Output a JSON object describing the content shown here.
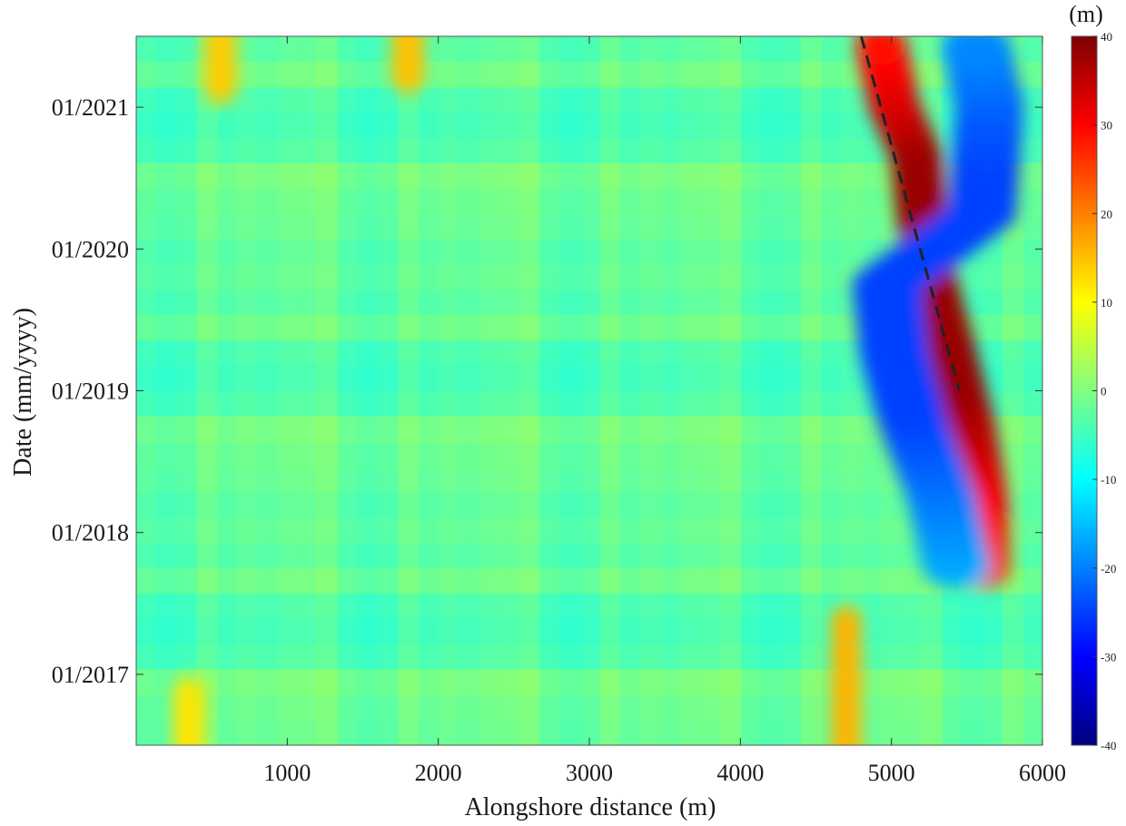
{
  "chart_data": {
    "type": "heatmap",
    "title": "",
    "xlabel": "Alongshore distance (m)",
    "ylabel": "Date (mm/yyyy)",
    "xlim": [
      0,
      6000
    ],
    "x_ticks": [
      1000,
      2000,
      3000,
      4000,
      5000,
      6000
    ],
    "x_tick_labels": [
      "1000",
      "2000",
      "3000",
      "4000",
      "5000",
      "6000"
    ],
    "ylim": [
      "2016-07",
      "2021-07"
    ],
    "y_ticks": [
      "2017-01",
      "2018-01",
      "2019-01",
      "2020-01",
      "2021-01"
    ],
    "y_tick_labels": [
      "01/2017",
      "01/2018",
      "01/2019",
      "01/2020",
      "01/2021"
    ],
    "grid": false,
    "colorbar": {
      "label": "(m)",
      "range": [
        -40,
        40
      ],
      "ticks": [
        40,
        30,
        20,
        10,
        0,
        -10,
        -20,
        -30,
        -40
      ],
      "tick_labels": [
        "40",
        "30",
        "20",
        "10",
        "0",
        "-10",
        "-20",
        "-30",
        "-40"
      ],
      "colormap": "jet"
    },
    "background_value": -4,
    "features": [
      {
        "name": "accretion-band",
        "sign": "positive",
        "peak": 38,
        "path": [
          [
            "2017-10",
            5620
          ],
          [
            "2018-04",
            5600
          ],
          [
            "2018-10",
            5520
          ],
          [
            "2019-04",
            5400
          ],
          [
            "2019-10",
            5270
          ],
          [
            "2020-04",
            5200
          ],
          [
            "2020-09",
            5160
          ],
          [
            "2021-01",
            5020
          ],
          [
            "2021-07",
            4920
          ]
        ]
      },
      {
        "name": "erosion-band",
        "sign": "negative",
        "peak": -25,
        "path": [
          [
            "2017-10",
            5430
          ],
          [
            "2018-04",
            5330
          ],
          [
            "2018-10",
            5150
          ],
          [
            "2019-04",
            5020
          ],
          [
            "2019-10",
            4970
          ],
          [
            "2020-04",
            5600
          ],
          [
            "2021-01",
            5650
          ],
          [
            "2021-07",
            5550
          ]
        ]
      },
      {
        "name": "accretion-patch",
        "sign": "positive",
        "peak": 16,
        "x": 4700,
        "y_range": [
          "2016-07",
          "2017-05"
        ]
      },
      {
        "name": "accretion-patch",
        "sign": "positive",
        "peak": 14,
        "x": 560,
        "y_range": [
          "2021-03",
          "2021-07"
        ]
      },
      {
        "name": "accretion-patch",
        "sign": "positive",
        "peak": 15,
        "x": 1800,
        "y_range": [
          "2021-04",
          "2021-07"
        ]
      },
      {
        "name": "accretion-patch",
        "sign": "positive",
        "peak": 12,
        "x": 350,
        "y_range": [
          "2016-07",
          "2016-11"
        ]
      }
    ],
    "trend_line": {
      "style": "dashed",
      "color": "#222222",
      "points": [
        [
          "2021-07",
          4800
        ],
        [
          "2019-01",
          5450
        ]
      ]
    }
  }
}
